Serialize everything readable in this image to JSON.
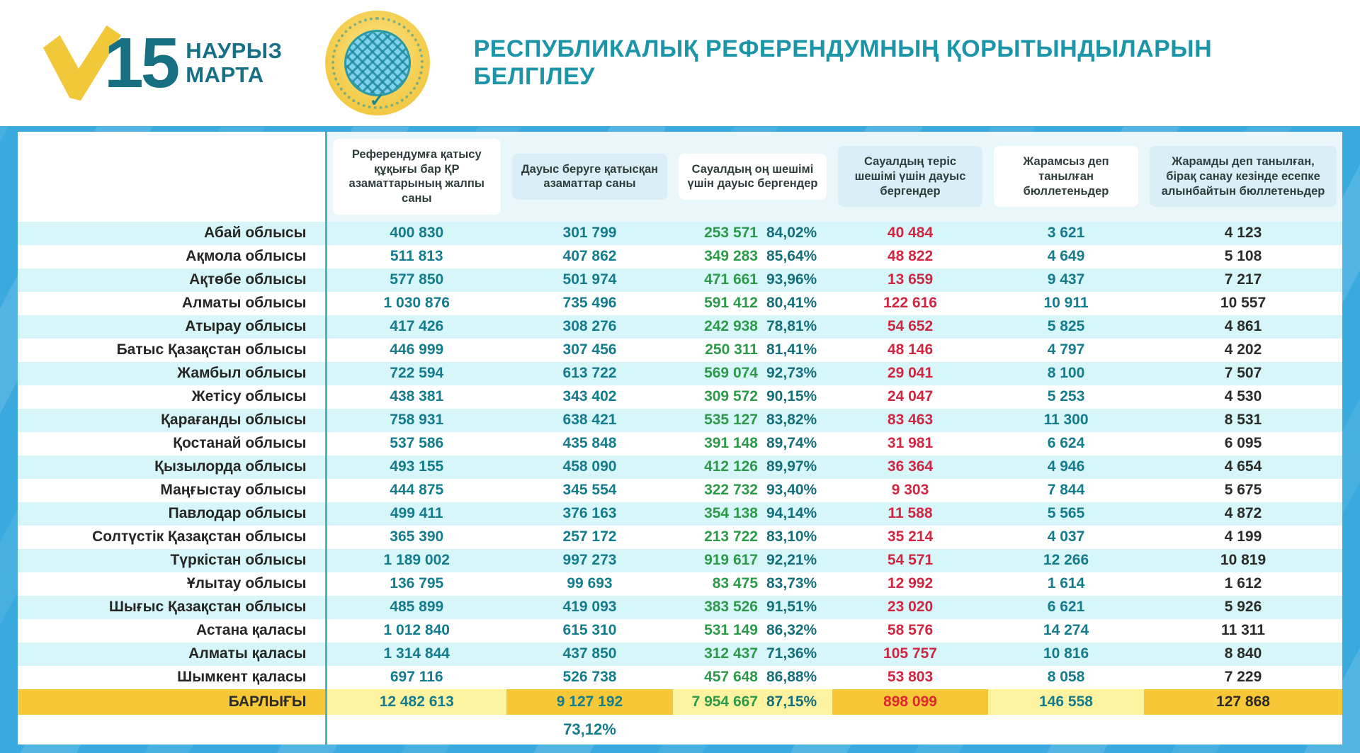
{
  "header": {
    "date_number": "15",
    "month_kk": "НАУРЫЗ",
    "month_ru": "МАРТА",
    "title": "РЕСПУБЛИКАЛЫҚ РЕФЕРЕНДУМНЫҢ ҚОРЫТЫНДЫЛАРЫН БЕЛГІЛЕУ",
    "emblem_check": "✓"
  },
  "table": {
    "columns": [
      "Референдумға қатысу құқығы бар ҚР азаматтарының жалпы саны",
      "Дауыс беруге қатысқан азаматтар саны",
      "Сауалдың оң шешімі үшін дауыс бергендер",
      "Сауалдың теріс шешімі үшін дауыс бергендер",
      "Жарамсыз деп танылған бюллетеньдер",
      "Жарамды деп танылған, бірақ санау кезінде есепке алынбайтын бюллетеньдер"
    ],
    "rows": [
      {
        "region": "Абай облысы",
        "eligible": "400 830",
        "voted": "301 799",
        "yes": "253 571",
        "yes_pct": "84,02%",
        "no": "40 484",
        "invalid": "3 621",
        "uncounted": "4 123"
      },
      {
        "region": "Ақмола облысы",
        "eligible": "511 813",
        "voted": "407 862",
        "yes": "349 283",
        "yes_pct": "85,64%",
        "no": "48 822",
        "invalid": "4 649",
        "uncounted": "5 108"
      },
      {
        "region": "Ақтөбе облысы",
        "eligible": "577 850",
        "voted": "501 974",
        "yes": "471 661",
        "yes_pct": "93,96%",
        "no": "13 659",
        "invalid": "9 437",
        "uncounted": "7 217"
      },
      {
        "region": "Алматы облысы",
        "eligible": "1 030 876",
        "voted": "735 496",
        "yes": "591 412",
        "yes_pct": "80,41%",
        "no": "122 616",
        "invalid": "10 911",
        "uncounted": "10 557"
      },
      {
        "region": "Атырау облысы",
        "eligible": "417 426",
        "voted": "308 276",
        "yes": "242 938",
        "yes_pct": "78,81%",
        "no": "54 652",
        "invalid": "5 825",
        "uncounted": "4 861"
      },
      {
        "region": "Батыс Қазақстан облысы",
        "eligible": "446 999",
        "voted": "307 456",
        "yes": "250 311",
        "yes_pct": "81,41%",
        "no": "48 146",
        "invalid": "4 797",
        "uncounted": "4 202"
      },
      {
        "region": "Жамбыл облысы",
        "eligible": "722 594",
        "voted": "613 722",
        "yes": "569 074",
        "yes_pct": "92,73%",
        "no": "29 041",
        "invalid": "8 100",
        "uncounted": "7 507"
      },
      {
        "region": "Жетісу облысы",
        "eligible": "438 381",
        "voted": "343 402",
        "yes": "309 572",
        "yes_pct": "90,15%",
        "no": "24 047",
        "invalid": "5 253",
        "uncounted": "4 530"
      },
      {
        "region": "Қарағанды облысы",
        "eligible": "758 931",
        "voted": "638 421",
        "yes": "535 127",
        "yes_pct": "83,82%",
        "no": "83 463",
        "invalid": "11 300",
        "uncounted": "8 531"
      },
      {
        "region": "Қостанай облысы",
        "eligible": "537 586",
        "voted": "435 848",
        "yes": "391 148",
        "yes_pct": "89,74%",
        "no": "31 981",
        "invalid": "6 624",
        "uncounted": "6 095"
      },
      {
        "region": "Қызылорда облысы",
        "eligible": "493 155",
        "voted": "458 090",
        "yes": "412 126",
        "yes_pct": "89,97%",
        "no": "36 364",
        "invalid": "4 946",
        "uncounted": "4 654"
      },
      {
        "region": "Маңғыстау облысы",
        "eligible": "444 875",
        "voted": "345 554",
        "yes": "322 732",
        "yes_pct": "93,40%",
        "no": "9 303",
        "invalid": "7 844",
        "uncounted": "5 675"
      },
      {
        "region": "Павлодар облысы",
        "eligible": "499 411",
        "voted": "376 163",
        "yes": "354 138",
        "yes_pct": "94,14%",
        "no": "11 588",
        "invalid": "5 565",
        "uncounted": "4 872"
      },
      {
        "region": "Солтүстік Қазақстан облысы",
        "eligible": "365 390",
        "voted": "257 172",
        "yes": "213 722",
        "yes_pct": "83,10%",
        "no": "35 214",
        "invalid": "4 037",
        "uncounted": "4 199"
      },
      {
        "region": "Түркістан облысы",
        "eligible": "1 189 002",
        "voted": "997 273",
        "yes": "919 617",
        "yes_pct": "92,21%",
        "no": "54 571",
        "invalid": "12 266",
        "uncounted": "10 819"
      },
      {
        "region": "Ұлытау облысы",
        "eligible": "136 795",
        "voted": "99 693",
        "yes": "83 475",
        "yes_pct": "83,73%",
        "no": "12 992",
        "invalid": "1 614",
        "uncounted": "1 612"
      },
      {
        "region": "Шығыс Қазақстан облысы",
        "eligible": "485 899",
        "voted": "419 093",
        "yes": "383 526",
        "yes_pct": "91,51%",
        "no": "23 020",
        "invalid": "6 621",
        "uncounted": "5 926"
      },
      {
        "region": "Астана қаласы",
        "eligible": "1 012 840",
        "voted": "615 310",
        "yes": "531 149",
        "yes_pct": "86,32%",
        "no": "58 576",
        "invalid": "14 274",
        "uncounted": "11 311"
      },
      {
        "region": "Алматы қаласы",
        "eligible": "1 314 844",
        "voted": "437 850",
        "yes": "312 437",
        "yes_pct": "71,36%",
        "no": "105 757",
        "invalid": "10 816",
        "uncounted": "8 840"
      },
      {
        "region": "Шымкент қаласы",
        "eligible": "697 116",
        "voted": "526 738",
        "yes": "457 648",
        "yes_pct": "86,88%",
        "no": "53 803",
        "invalid": "8 058",
        "uncounted": "7 229"
      }
    ],
    "total": {
      "label": "БАРЛЫҒЫ",
      "eligible": "12 482 613",
      "voted": "9 127 192",
      "yes": "7 954 667",
      "yes_pct": "87,15%",
      "no": "898 099",
      "invalid": "146 558",
      "uncounted": "127 868"
    },
    "turnout_pct": "73,12%"
  },
  "colors": {
    "background_blue": "#3AAADE",
    "stripe_cyan": "#D7F6FA",
    "teal_number": "#147C8C",
    "green_yes": "#2D9A49",
    "red_no": "#CF2742",
    "dark_value": "#2B2B29",
    "total_gold": "#F6C838",
    "total_pale_yellow": "#FCF2A0",
    "title_teal": "#1D95A8",
    "logo_gold": "#F2C83B"
  }
}
